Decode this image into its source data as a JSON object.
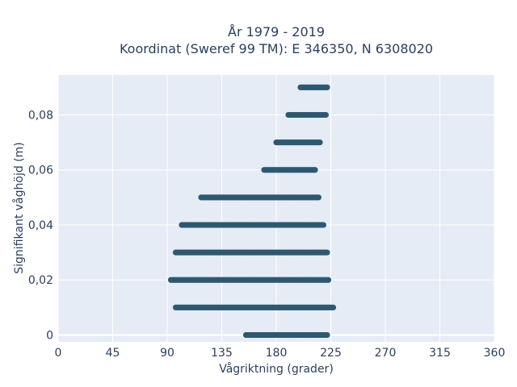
{
  "chart_data": {
    "type": "scatter",
    "title": [
      "År 1979 - 2019",
      "Koordinat (Sweref 99 TM): E 346350, N 6308020"
    ],
    "xlabel": "Vågriktning (grader)",
    "ylabel": "Signifikant våghöjd (m)",
    "xlim": [
      0,
      360
    ],
    "ylim": [
      -0.0025,
      0.0945
    ],
    "x_ticks": [
      0,
      45,
      90,
      135,
      180,
      225,
      270,
      315,
      360
    ],
    "x_tick_labels": [
      "0",
      "45",
      "90",
      "135",
      "180",
      "225",
      "270",
      "315",
      "360"
    ],
    "y_ticks": [
      0,
      0.02,
      0.04,
      0.06,
      0.08
    ],
    "y_tick_labels": [
      "0",
      "0,02",
      "0,04",
      "0,06",
      "0,08"
    ],
    "grid": true,
    "marker_color": "#2e5870",
    "background_color": "#e5ecf6",
    "series": [
      {
        "bands": [
          {
            "y": 0.0,
            "x_min": 155,
            "x_max": 222
          },
          {
            "y": 0.01,
            "x_min": 97,
            "x_max": 227
          },
          {
            "y": 0.02,
            "x_min": 93,
            "x_max": 223
          },
          {
            "y": 0.03,
            "x_min": 97,
            "x_max": 222
          },
          {
            "y": 0.04,
            "x_min": 102,
            "x_max": 219
          },
          {
            "y": 0.05,
            "x_min": 118,
            "x_max": 215
          },
          {
            "y": 0.06,
            "x_min": 170,
            "x_max": 212
          },
          {
            "y": 0.07,
            "x_min": 180,
            "x_max": 216
          },
          {
            "y": 0.08,
            "x_min": 190,
            "x_max": 221
          },
          {
            "y": 0.09,
            "x_min": 200,
            "x_max": 222
          }
        ]
      }
    ]
  }
}
